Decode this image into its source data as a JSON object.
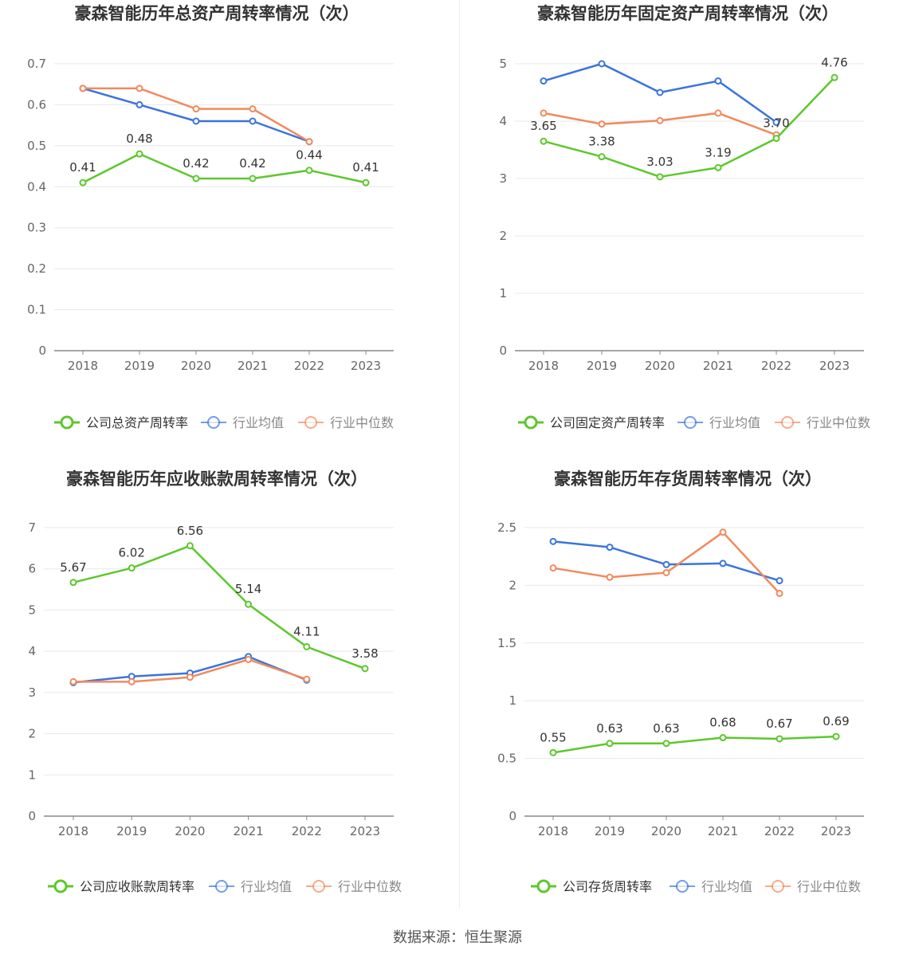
{
  "source_label": "数据来源：恒生聚源",
  "colors": {
    "company": "#5cc82b",
    "avg": "#3b74dc",
    "median": "#f08a5d",
    "grid": "#e6e8ee",
    "axis": "#888888"
  },
  "chart_data": [
    {
      "type": "line",
      "title": "豪森智能历年总资产周转率情况（次）",
      "categories": [
        "2018",
        "2019",
        "2020",
        "2021",
        "2022",
        "2023"
      ],
      "ylim": [
        0,
        0.7
      ],
      "yticks": [
        "0",
        "0.1",
        "0.2",
        "0.3",
        "0.4",
        "0.5",
        "0.6",
        "0.7"
      ],
      "grid": true,
      "legend_position": "bottom",
      "series": [
        {
          "name": "公司总资产周转率",
          "role": "company",
          "values": [
            0.41,
            0.48,
            0.42,
            0.42,
            0.44,
            0.41
          ],
          "labels": [
            "0.41",
            "0.48",
            "0.42",
            "0.42",
            "0.44",
            "0.41"
          ]
        },
        {
          "name": "行业均值",
          "role": "avg",
          "values": [
            0.64,
            0.6,
            0.56,
            0.56,
            0.51,
            null
          ]
        },
        {
          "name": "行业中位数",
          "role": "median",
          "values": [
            0.64,
            0.64,
            0.59,
            0.59,
            0.51,
            null
          ]
        }
      ]
    },
    {
      "type": "line",
      "title": "豪森智能历年固定资产周转率情况（次）",
      "categories": [
        "2018",
        "2019",
        "2020",
        "2021",
        "2022",
        "2023"
      ],
      "ylim": [
        0,
        5
      ],
      "yticks": [
        "0",
        "1",
        "2",
        "3",
        "4",
        "5"
      ],
      "grid": true,
      "legend_position": "bottom",
      "series": [
        {
          "name": "公司固定资产周转率",
          "role": "company",
          "values": [
            3.65,
            3.38,
            3.03,
            3.19,
            3.7,
            4.76
          ],
          "labels": [
            "3.65",
            "3.38",
            "3.03",
            "3.19",
            "3.70",
            "4.76"
          ]
        },
        {
          "name": "行业均值",
          "role": "avg",
          "values": [
            4.7,
            5.0,
            4.5,
            4.7,
            3.98,
            null
          ]
        },
        {
          "name": "行业中位数",
          "role": "median",
          "values": [
            4.14,
            3.95,
            4.01,
            4.14,
            3.76,
            null
          ]
        }
      ]
    },
    {
      "type": "line",
      "title": "豪森智能历年应收账款周转率情况（次）",
      "categories": [
        "2018",
        "2019",
        "2020",
        "2021",
        "2022",
        "2023"
      ],
      "ylim": [
        0,
        7
      ],
      "yticks": [
        "0",
        "1",
        "2",
        "3",
        "4",
        "5",
        "6",
        "7"
      ],
      "grid": true,
      "legend_position": "bottom",
      "series": [
        {
          "name": "公司应收账款周转率",
          "role": "company",
          "values": [
            5.67,
            6.02,
            6.56,
            5.14,
            4.11,
            3.58
          ],
          "labels": [
            "5.67",
            "6.02",
            "6.56",
            "5.14",
            "4.11",
            "3.58"
          ]
        },
        {
          "name": "行业均值",
          "role": "avg",
          "values": [
            3.24,
            3.39,
            3.47,
            3.87,
            3.3,
            null
          ]
        },
        {
          "name": "行业中位数",
          "role": "median",
          "values": [
            3.26,
            3.26,
            3.37,
            3.8,
            3.32,
            null
          ]
        }
      ]
    },
    {
      "type": "line",
      "title": "豪森智能历年存货周转率情况（次）",
      "categories": [
        "2018",
        "2019",
        "2020",
        "2021",
        "2022",
        "2023"
      ],
      "ylim": [
        0,
        2.5
      ],
      "yticks": [
        "0",
        "0.5",
        "1",
        "1.5",
        "2",
        "2.5"
      ],
      "grid": true,
      "legend_position": "bottom",
      "series": [
        {
          "name": "公司存货周转率",
          "role": "company",
          "values": [
            0.55,
            0.63,
            0.63,
            0.68,
            0.67,
            0.69
          ],
          "labels": [
            "0.55",
            "0.63",
            "0.63",
            "0.68",
            "0.67",
            "0.69"
          ]
        },
        {
          "name": "行业均值",
          "role": "avg",
          "values": [
            2.38,
            2.33,
            2.18,
            2.19,
            2.04,
            null
          ]
        },
        {
          "name": "行业中位数",
          "role": "median",
          "values": [
            2.15,
            2.07,
            2.11,
            2.46,
            1.93,
            null
          ]
        }
      ]
    }
  ]
}
